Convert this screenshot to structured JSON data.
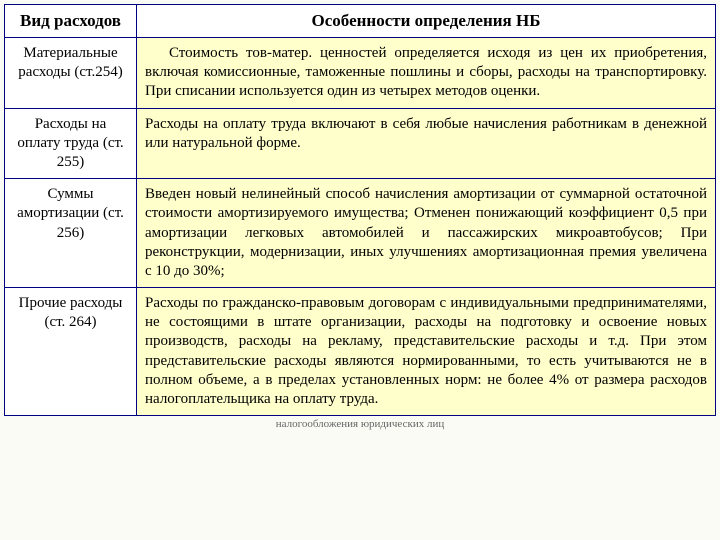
{
  "table": {
    "header": {
      "col1": "Вид расходов",
      "col2": "Особенности определения НБ"
    },
    "rows": [
      {
        "left": "Материальные расходы (ст.254)",
        "right_indent": true,
        "right": "Стоимость тов-матер. ценностей определяется исходя из цен их приобретения, включая комиссионные, таможенные пошлины и сборы, расходы на транспортировку. При списании используется один из четырех методов оценки."
      },
      {
        "left": "Расходы на оплату труда (ст. 255)",
        "right_indent": false,
        "right": "Расходы на оплату труда включают в себя любые начисления работникам в денежной или натуральной форме."
      },
      {
        "left": "Суммы амортизации (ст. 256)",
        "right_indent": false,
        "right": "Введен новый нелинейный способ начисления амортизации от суммарной остаточной стоимости амортизируемого имущества; Отменен понижающий коэффициент 0,5 при амортизации легковых автомобилей и пассажирских микроавтобусов; При реконструкции, модернизации, иных улучшениях амортизационная премия увеличена с 10 до 30%;"
      },
      {
        "left": "Прочие расходы (ст. 264)",
        "right_indent": false,
        "right": "Расходы по гражданско-правовым договорам с индивидуальными предпринимателями, не состоящими в штате организации, расходы на подготовку и освоение новых производств, расходы на рекламу, представительские расходы и т.д. При этом представительские расходы являются нормированными, то есть учитываются не в полном объеме, а в пределах установленных норм: не более 4% от размера расходов налогоплательщика на оплату труда."
      }
    ]
  },
  "footer": "налогообложения юридических лиц"
}
